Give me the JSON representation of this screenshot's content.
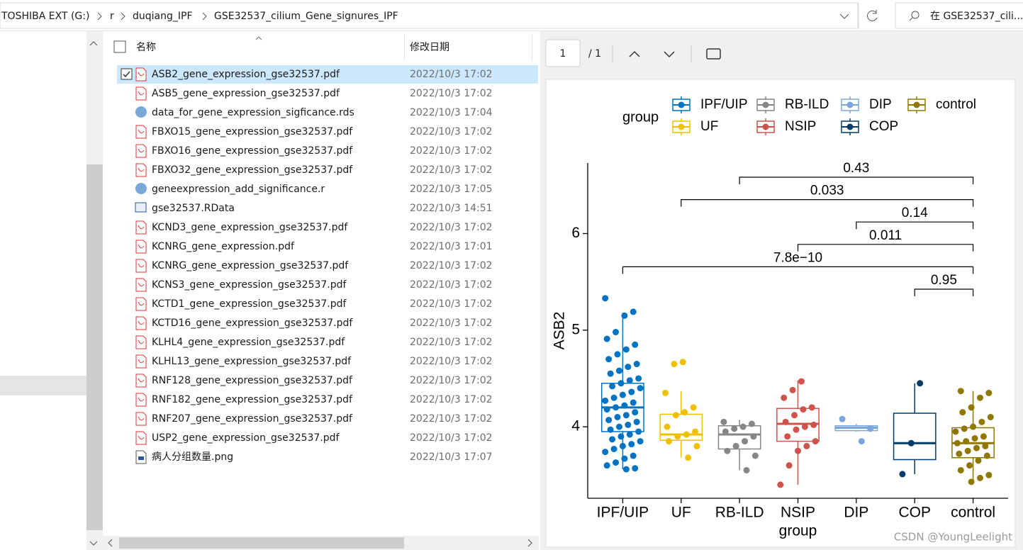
{
  "address_bar": {
    "crumbs": [
      "TOSHIBA EXT (G:)",
      "r",
      "duqiang_IPF",
      "GSE32537_cilium_Gene_signures_IPF"
    ],
    "search_placeholder": "在 GSE32537_cili..."
  },
  "file_list": {
    "columns": [
      "名称",
      "修改日期"
    ],
    "files": [
      {
        "name": "ASB2_gene_expression_gse32537.pdf",
        "modified": "2022/10/3 17:02"
      },
      {
        "name": "ASB5_gene_expression_gse32537.pdf",
        "modified": "2022/10/3 17:02"
      },
      {
        "name": "data_for_gene_expression_sigficance.rds",
        "modified": "2022/10/3 17:04"
      },
      {
        "name": "FBXO15_gene_expression_gse32537.pdf",
        "modified": "2022/10/3 17:02"
      },
      {
        "name": "FBXO16_gene_expression_gse32537.pdf",
        "modified": "2022/10/3 17:02"
      },
      {
        "name": "FBXO32_gene_expression_gse32537.pdf",
        "modified": "2022/10/3 17:02"
      },
      {
        "name": "geneexpression_add_significance.r",
        "modified": "2022/10/3 17:05"
      },
      {
        "name": "gse32537.RData",
        "modified": "2022/10/3 14:51"
      },
      {
        "name": "KCND3_gene_expression_gse32537.pdf",
        "modified": "2022/10/3 17:02"
      },
      {
        "name": "KCNRG_gene_expression.pdf",
        "modified": "2022/10/3 17:01"
      },
      {
        "name": "KCNRG_gene_expression_gse32537.pdf",
        "modified": "2022/10/3 17:02"
      },
      {
        "name": "KCNS3_gene_expression_gse32537.pdf",
        "modified": "2022/10/3 17:02"
      },
      {
        "name": "KCTD1_gene_expression_gse32537.pdf",
        "modified": "2022/10/3 17:02"
      },
      {
        "name": "KCTD16_gene_expression_gse32537.pdf",
        "modified": "2022/10/3 17:02"
      },
      {
        "name": "KLHL4_gene_expression_gse32537.pdf",
        "modified": "2022/10/3 17:02"
      },
      {
        "name": "KLHL13_gene_expression_gse32537.pdf",
        "modified": "2022/10/3 17:02"
      },
      {
        "name": "RNF128_gene_expression_gse32537.pdf",
        "modified": "2022/10/3 17:02"
      },
      {
        "name": "RNF182_gene_expression_gse32537.pdf",
        "modified": "2022/10/3 17:02"
      },
      {
        "name": "RNF207_gene_expression_gse32537.pdf",
        "modified": "2022/10/3 17:02"
      },
      {
        "name": "USP2_gene_expression_gse32537.pdf",
        "modified": "2022/10/3 17:02"
      },
      {
        "name": "病人分组数量.png",
        "modified": "2022/10/3 17:07"
      }
    ]
  },
  "preview_toolbar": {
    "page": "1",
    "page_count": "/ 1"
  },
  "watermark": "CSDN @YoungLeelight",
  "chart_data": {
    "type": "boxplot",
    "xlabel": "group",
    "ylabel": "ASB2",
    "legend_title": "group",
    "categories": [
      "IPF/UIP",
      "UF",
      "RB-ILD",
      "NSIP",
      "DIP",
      "COP",
      "control"
    ],
    "ylim": [
      3.26,
      6.73
    ],
    "yticks": [
      4,
      5,
      6
    ],
    "series": [
      {
        "name": "IPF/UIP",
        "color": "#0073C2",
        "box": [
          3.56,
          3.95,
          4.2,
          4.45,
          5.18
        ],
        "points": [
          5.33,
          5.19,
          5.15,
          4.98,
          4.91,
          4.85,
          4.8,
          4.75,
          4.7,
          4.65,
          4.62,
          4.58,
          4.55,
          4.5,
          4.48,
          4.45,
          4.42,
          4.4,
          4.36,
          4.33,
          4.3,
          4.27,
          4.25,
          4.22,
          4.2,
          4.18,
          4.15,
          4.12,
          4.1,
          4.07,
          4.05,
          4.02,
          4.0,
          3.97,
          3.95,
          3.92,
          3.9,
          3.87,
          3.85,
          3.82,
          3.8,
          3.77,
          3.74,
          3.7,
          3.67,
          3.63,
          3.6,
          3.57,
          3.56
        ]
      },
      {
        "name": "UF",
        "color": "#EFC000",
        "box": [
          3.68,
          3.86,
          3.92,
          4.13,
          4.37
        ],
        "points": [
          4.67,
          4.65,
          4.35,
          4.2,
          4.15,
          4.12,
          4.0,
          3.95,
          3.92,
          3.9,
          3.85,
          3.8,
          3.68
        ]
      },
      {
        "name": "RB-ILD",
        "color": "#868686",
        "box": [
          3.55,
          3.77,
          3.92,
          4.01,
          4.07
        ],
        "points": [
          4.05,
          4.03,
          4.0,
          3.98,
          3.95,
          3.9,
          3.85,
          3.8,
          3.75,
          3.7,
          3.55
        ]
      },
      {
        "name": "NSIP",
        "color": "#CD534C",
        "box": [
          3.4,
          3.85,
          4.03,
          4.19,
          4.48
        ],
        "points": [
          4.47,
          4.38,
          4.3,
          4.2,
          4.18,
          4.12,
          4.05,
          4.02,
          4.0,
          3.97,
          3.9,
          3.85,
          3.8,
          3.75,
          3.6,
          3.4
        ]
      },
      {
        "name": "DIP",
        "color": "#7AA6DC",
        "box": [
          3.95,
          3.96,
          3.99,
          4.01,
          4.03
        ],
        "points": [
          4.08,
          3.98,
          3.85
        ]
      },
      {
        "name": "COP",
        "color": "#003C67",
        "box": [
          3.51,
          3.66,
          3.83,
          4.14,
          4.45
        ],
        "points": [
          4.45,
          3.83,
          3.51
        ]
      },
      {
        "name": "control",
        "color": "#8F7700",
        "box": [
          3.43,
          3.68,
          3.83,
          3.99,
          4.37
        ],
        "points": [
          4.37,
          4.35,
          4.3,
          4.2,
          4.15,
          4.1,
          4.05,
          4.0,
          3.98,
          3.95,
          3.9,
          3.88,
          3.85,
          3.83,
          3.8,
          3.78,
          3.75,
          3.72,
          3.7,
          3.65,
          3.6,
          3.55,
          3.5,
          3.47,
          3.43
        ]
      }
    ],
    "comparisons": [
      {
        "groups": [
          2,
          6
        ],
        "p": 0.43
      },
      {
        "groups": [
          1,
          6
        ],
        "p": 0.033
      },
      {
        "groups": [
          4,
          6
        ],
        "p": 0.14
      },
      {
        "groups": [
          3,
          6
        ],
        "p": 0.011
      },
      {
        "groups": [
          0,
          6
        ],
        "p": {
          "value": 7.8e-10,
          "label": "7.8e−10"
        }
      },
      {
        "groups": [
          5,
          6
        ],
        "p": 0.95
      }
    ]
  }
}
